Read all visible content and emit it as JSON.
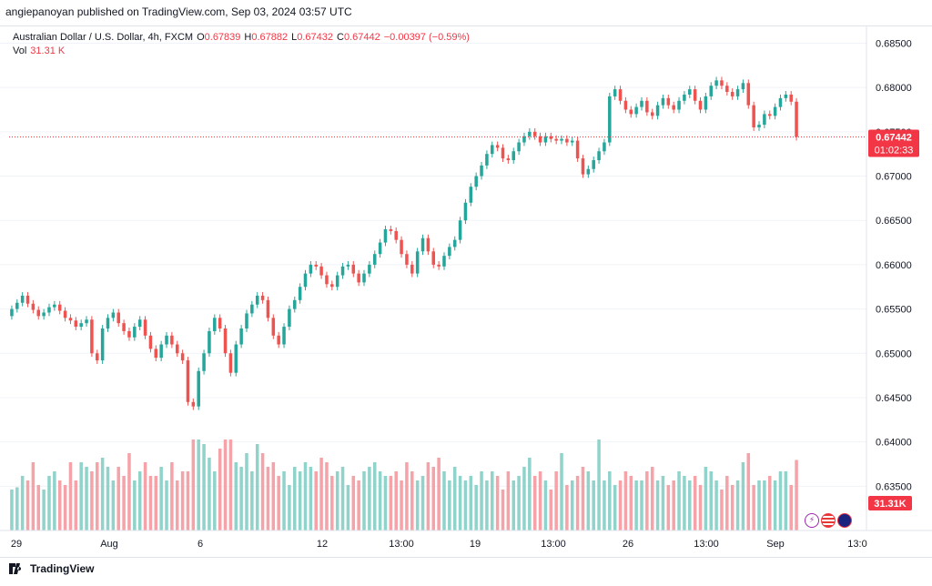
{
  "publisher_line": "angiepanoyan published on TradingView.com, Sep 03, 2024 03:57 UTC",
  "legend": {
    "symbol": "Australian Dollar / U.S. Dollar, 4h, FXCM",
    "o_label": "O",
    "o": "0.67839",
    "h_label": "H",
    "h": "0.67882",
    "l_label": "L",
    "l": "0.67432",
    "c_label": "C",
    "c": "0.67442",
    "change": "−0.00397 (−0.59%)",
    "vol_label": "Vol",
    "vol": "31.31 K"
  },
  "price_tag": {
    "price": "0.67442",
    "countdown": "01:02:33",
    "volume": "31.31K"
  },
  "footer": {
    "brand": "TradingView"
  },
  "colors": {
    "up": "#26a69a",
    "down": "#ef5350",
    "vol_up": "#90d3cb",
    "vol_down": "#f5a3a8",
    "price_line": "#f23645",
    "grid": "#f0f3fa"
  },
  "icons": [
    "lightning-icon",
    "us-flag-icon",
    "au-flag-icon"
  ],
  "chart_data": {
    "type": "candlestick",
    "title": "Australian Dollar / U.S. Dollar, 4h, FXCM",
    "ylim": [
      0.63,
      0.687
    ],
    "y_ticks": [
      "0.68500",
      "0.68000",
      "0.67500",
      "0.67000",
      "0.66500",
      "0.66000",
      "0.65500",
      "0.65000",
      "0.64500",
      "0.64000",
      "0.63500"
    ],
    "x_ticks": [
      "29",
      "Aug",
      "6",
      "12",
      "13:00",
      "19",
      "13:00",
      "26",
      "13:00",
      "Sep",
      "13:0"
    ],
    "last_price": 0.67442,
    "closes": [
      0.655,
      0.6557,
      0.6565,
      0.6556,
      0.6549,
      0.6542,
      0.6546,
      0.6552,
      0.6555,
      0.6548,
      0.654,
      0.6537,
      0.653,
      0.6534,
      0.6538,
      0.65,
      0.6492,
      0.6528,
      0.654,
      0.6546,
      0.6534,
      0.6525,
      0.6518,
      0.653,
      0.6538,
      0.652,
      0.6505,
      0.6495,
      0.651,
      0.652,
      0.651,
      0.65,
      0.6492,
      0.6445,
      0.644,
      0.648,
      0.65,
      0.6525,
      0.654,
      0.6528,
      0.65,
      0.6478,
      0.651,
      0.6528,
      0.6545,
      0.6555,
      0.6565,
      0.656,
      0.654,
      0.652,
      0.651,
      0.653,
      0.655,
      0.656,
      0.6575,
      0.659,
      0.66,
      0.6598,
      0.6588,
      0.6578,
      0.6575,
      0.6588,
      0.6598,
      0.66,
      0.659,
      0.658,
      0.659,
      0.66,
      0.6612,
      0.6625,
      0.664,
      0.6638,
      0.6628,
      0.6612,
      0.66,
      0.659,
      0.6615,
      0.663,
      0.6615,
      0.66,
      0.6598,
      0.661,
      0.662,
      0.6628,
      0.665,
      0.667,
      0.6688,
      0.67,
      0.6712,
      0.6725,
      0.6735,
      0.6732,
      0.672,
      0.6718,
      0.6728,
      0.6738,
      0.6745,
      0.675,
      0.6745,
      0.6738,
      0.6745,
      0.6742,
      0.674,
      0.6742,
      0.6738,
      0.674,
      0.672,
      0.6702,
      0.6708,
      0.6718,
      0.6728,
      0.6738,
      0.679,
      0.6798,
      0.6785,
      0.6775,
      0.677,
      0.6778,
      0.6785,
      0.6772,
      0.6768,
      0.678,
      0.6788,
      0.678,
      0.6775,
      0.6785,
      0.6792,
      0.6798,
      0.6785,
      0.6775,
      0.679,
      0.6802,
      0.6808,
      0.6802,
      0.6795,
      0.679,
      0.6798,
      0.6805,
      0.678,
      0.6755,
      0.6758,
      0.677,
      0.6768,
      0.6778,
      0.6788,
      0.6792,
      0.6784,
      0.67442
    ],
    "volumes": [
      18,
      19,
      24,
      22,
      30,
      20,
      18,
      24,
      26,
      22,
      20,
      30,
      22,
      30,
      28,
      26,
      30,
      32,
      28,
      22,
      28,
      24,
      34,
      22,
      26,
      30,
      24,
      24,
      28,
      22,
      30,
      22,
      26,
      26,
      40,
      40,
      38,
      32,
      26,
      36,
      40,
      40,
      30,
      28,
      34,
      26,
      38,
      34,
      28,
      30,
      24,
      26,
      20,
      28,
      26,
      30,
      28,
      26,
      32,
      30,
      24,
      26,
      28,
      20,
      24,
      22,
      26,
      28,
      30,
      26,
      24,
      24,
      26,
      22,
      30,
      26,
      22,
      24,
      30,
      28,
      32,
      26,
      22,
      28,
      24,
      22,
      24,
      20,
      26,
      22,
      26,
      24,
      18,
      26,
      22,
      24,
      28,
      32,
      24,
      26,
      22,
      18,
      26,
      34,
      20,
      22,
      24,
      28,
      26,
      22,
      40,
      22,
      26,
      20,
      22,
      26,
      24,
      22,
      22,
      26,
      28,
      22,
      24,
      20,
      22,
      26,
      24,
      22,
      24,
      20,
      28,
      26,
      22,
      18,
      24,
      20,
      22,
      30,
      34,
      20,
      22,
      22,
      24,
      22,
      26,
      26,
      20,
      31
    ]
  }
}
